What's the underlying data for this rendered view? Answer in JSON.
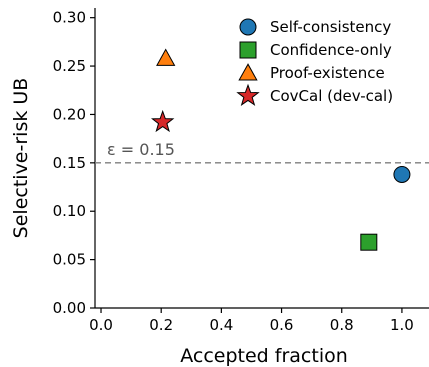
{
  "chart_data": {
    "type": "scatter",
    "xlabel": "Accepted fraction",
    "ylabel": "Selective-risk UB",
    "xlim": [
      -0.02,
      1.09
    ],
    "ylim": [
      0.0,
      0.31
    ],
    "xticks": [
      "0.0",
      "0.2",
      "0.4",
      "0.6",
      "0.8",
      "1.0"
    ],
    "xtick_values": [
      0.0,
      0.2,
      0.4,
      0.6,
      0.8,
      1.0
    ],
    "yticks": [
      "0.00",
      "0.05",
      "0.10",
      "0.15",
      "0.20",
      "0.25",
      "0.30"
    ],
    "ytick_values": [
      0.0,
      0.05,
      0.1,
      0.15,
      0.2,
      0.25,
      0.3
    ],
    "grid": false,
    "legend_position": "top-right",
    "series": [
      {
        "name": "Self-consistency",
        "marker": "circle",
        "color": "#1f77b4",
        "x": 1.0,
        "y": 0.138
      },
      {
        "name": "Confidence-only",
        "marker": "square",
        "color": "#2ca02c",
        "x": 0.89,
        "y": 0.068
      },
      {
        "name": "Proof-existence",
        "marker": "triangle",
        "color": "#ff7f0e",
        "x": 0.215,
        "y": 0.258
      },
      {
        "name": "CovCal (dev-cal)",
        "marker": "star",
        "color": "#d62728",
        "x": 0.205,
        "y": 0.192
      }
    ],
    "reference_line": {
      "y": 0.15,
      "label": "ε = 0.15",
      "color": "#7f7f7f",
      "style": "dashed"
    }
  }
}
